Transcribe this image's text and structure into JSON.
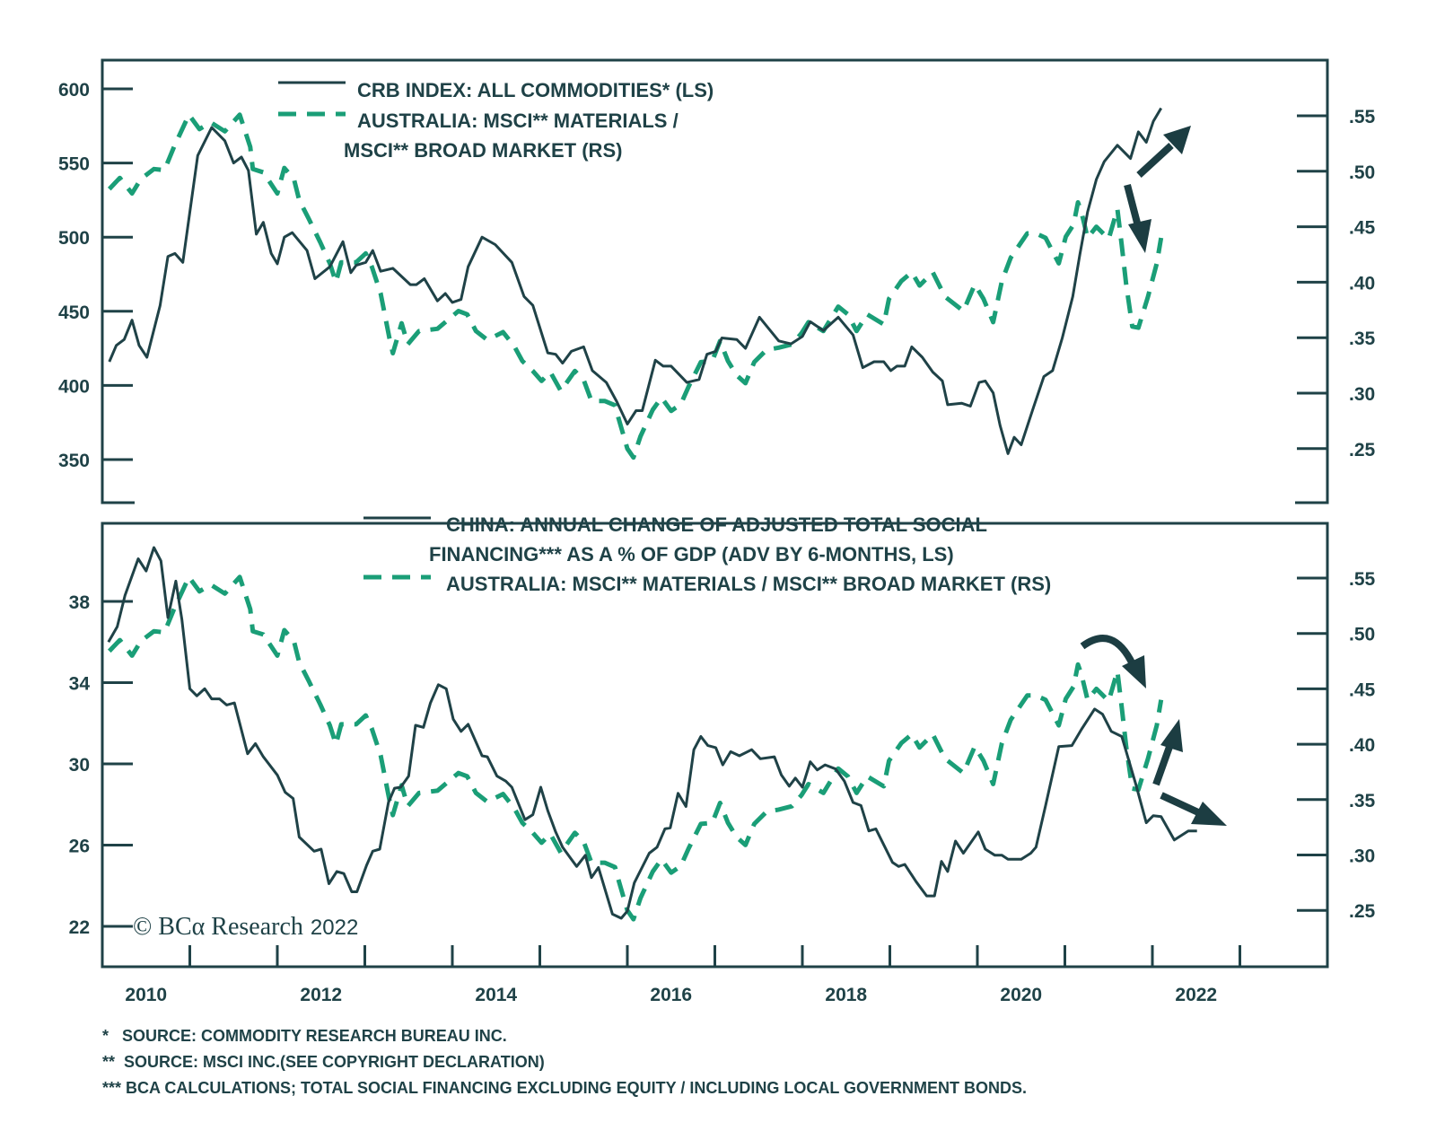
{
  "colors": {
    "dark": "#1f4247",
    "green": "#1a9e77",
    "arrow": "#1c3d42"
  },
  "chart_data": [
    {
      "type": "line",
      "panel": "top",
      "xlim": [
        2010,
        2024
      ],
      "x_tick_labels": [
        "2010",
        "2012",
        "2014",
        "2016",
        "2018",
        "2020",
        "2022"
      ],
      "y_left": {
        "ticks": [
          350,
          400,
          450,
          500,
          550,
          600
        ],
        "tick_labels": [
          "350",
          "400",
          "450",
          "500",
          "550",
          "600"
        ]
      },
      "y_right": {
        "ticks": [
          0.25,
          0.3,
          0.35,
          0.4,
          0.45,
          0.5,
          0.55
        ],
        "tick_labels": [
          ".25",
          ".30",
          ".35",
          ".40",
          ".45",
          ".50",
          ".55"
        ]
      },
      "legend": [
        {
          "label": "CRB INDEX: ALL COMMODITIES* (LS)",
          "style": "solid"
        },
        {
          "label_lines": [
            "AUSTRALIA: MSCI** MATERIALS /",
            "MSCI** BROAD MARKET (RS)"
          ],
          "style": "dashed"
        }
      ],
      "legend_position": "top-left",
      "series": [
        {
          "name": "CRB INDEX: ALL COMMODITIES* (LS)",
          "axis": "left",
          "style": "solid",
          "x": [
            2010.08,
            2010.16,
            2010.25,
            2010.34,
            2010.42,
            2010.51,
            2010.66,
            2010.75,
            2010.83,
            2010.92,
            2011.09,
            2011.25,
            2011.4,
            2011.5,
            2011.59,
            2011.67,
            2011.76,
            2011.84,
            2011.93,
            2012.0,
            2012.08,
            2012.17,
            2012.34,
            2012.43,
            2012.6,
            2012.75,
            2012.84,
            2012.9,
            2013.01,
            2013.09,
            2013.18,
            2013.32,
            2013.52,
            2013.59,
            2013.68,
            2013.83,
            2013.92,
            2014.0,
            2014.1,
            2014.18,
            2014.34,
            2014.49,
            2014.68,
            2014.82,
            2014.92,
            2015.09,
            2015.18,
            2015.26,
            2015.36,
            2015.5,
            2015.6,
            2015.76,
            2015.88,
            2016.0,
            2016.1,
            2016.17,
            2016.32,
            2016.41,
            2016.5,
            2016.68,
            2016.82,
            2016.91,
            2017.01,
            2017.08,
            2017.25,
            2017.35,
            2017.51,
            2017.73,
            2017.87,
            2018.0,
            2018.09,
            2018.24,
            2018.41,
            2018.58,
            2018.69,
            2018.82,
            2018.93,
            2019.01,
            2019.08,
            2019.17,
            2019.25,
            2019.37,
            2019.49,
            2019.6,
            2019.66,
            2019.82,
            2019.92,
            2020.02,
            2020.09,
            2020.18,
            2020.26,
            2020.35,
            2020.42,
            2020.5,
            2020.64,
            2020.76,
            2020.86,
            2020.97,
            2021.09,
            2021.17,
            2021.26,
            2021.36,
            2021.45,
            2021.6,
            2021.75,
            2021.84,
            2021.93,
            2022.01,
            2022.1
          ],
          "values": [
            416,
            427,
            431,
            444,
            427,
            419,
            454,
            487,
            489,
            483,
            555,
            574,
            565,
            550,
            554,
            545,
            502,
            510,
            489,
            482,
            500,
            503,
            491,
            472,
            480,
            497,
            476,
            481,
            483,
            491,
            477,
            479,
            468,
            468,
            472,
            457,
            462,
            456,
            458,
            480,
            500,
            495,
            483,
            460,
            454,
            422,
            421,
            415,
            423,
            426,
            410,
            402,
            389,
            374,
            383,
            383,
            417,
            413,
            413,
            402,
            404,
            421,
            423,
            432,
            431,
            425,
            446,
            430,
            428,
            433,
            443,
            437,
            446,
            434,
            412,
            416,
            416,
            410,
            413,
            413,
            426,
            419,
            409,
            403,
            387,
            388,
            386,
            402,
            403,
            395,
            373,
            354,
            365,
            360,
            385,
            406,
            410,
            432,
            460,
            488,
            517,
            539,
            551,
            562,
            553,
            571,
            564,
            578,
            587
          ]
        },
        {
          "name": "AUSTRALIA: MSCI** MATERIALS / MSCI** BROAD MARKET (RS)",
          "axis": "right",
          "style": "dashed",
          "x": [
            2010.08,
            2010.2,
            2010.34,
            2010.44,
            2010.59,
            2010.71,
            2010.82,
            2010.99,
            2011.11,
            2011.24,
            2011.4,
            2011.57,
            2011.69,
            2011.72,
            2011.84,
            2012.0,
            2012.08,
            2012.19,
            2012.25,
            2012.36,
            2012.49,
            2012.6,
            2012.67,
            2012.73,
            2012.9,
            2013.01,
            2013.08,
            2013.18,
            2013.28,
            2013.32,
            2013.42,
            2013.49,
            2013.62,
            2013.83,
            2014.07,
            2014.17,
            2014.27,
            2014.4,
            2014.58,
            2014.71,
            2014.8,
            2014.92,
            2015.02,
            2015.12,
            2015.24,
            2015.4,
            2015.5,
            2015.59,
            2015.74,
            2015.86,
            2015.9,
            2016.0,
            2016.07,
            2016.15,
            2016.29,
            2016.39,
            2016.5,
            2016.61,
            2016.7,
            2016.84,
            2016.97,
            2017.06,
            2017.15,
            2017.25,
            2017.35,
            2017.45,
            2017.59,
            2017.73,
            2017.88,
            2017.99,
            2018.07,
            2018.24,
            2018.41,
            2018.52,
            2018.62,
            2018.74,
            2018.93,
            2018.99,
            2019.13,
            2019.25,
            2019.34,
            2019.49,
            2019.63,
            2019.84,
            2019.97,
            2020.07,
            2020.18,
            2020.28,
            2020.38,
            2020.57,
            2020.67,
            2020.78,
            2020.93,
            2021.01,
            2021.1,
            2021.15,
            2021.19,
            2021.26,
            2021.36,
            2021.5,
            2021.6,
            2021.65,
            2021.7,
            2021.77,
            2021.84,
            2021.95,
            2022.05,
            2022.1
          ],
          "values": [
            0.484,
            0.494,
            0.48,
            0.493,
            0.502,
            0.501,
            0.522,
            0.551,
            0.538,
            0.544,
            0.536,
            0.551,
            0.522,
            0.502,
            0.499,
            0.48,
            0.503,
            0.493,
            0.474,
            0.457,
            0.436,
            0.417,
            0.4,
            0.418,
            0.418,
            0.426,
            0.414,
            0.39,
            0.35,
            0.336,
            0.363,
            0.344,
            0.356,
            0.358,
            0.374,
            0.371,
            0.356,
            0.348,
            0.355,
            0.342,
            0.329,
            0.32,
            0.311,
            0.319,
            0.302,
            0.32,
            0.312,
            0.293,
            0.293,
            0.289,
            0.277,
            0.25,
            0.242,
            0.261,
            0.285,
            0.296,
            0.284,
            0.29,
            0.306,
            0.328,
            0.329,
            0.347,
            0.329,
            0.316,
            0.309,
            0.328,
            0.339,
            0.341,
            0.344,
            0.354,
            0.364,
            0.356,
            0.378,
            0.371,
            0.356,
            0.371,
            0.362,
            0.385,
            0.401,
            0.409,
            0.397,
            0.409,
            0.387,
            0.374,
            0.398,
            0.385,
            0.364,
            0.401,
            0.422,
            0.444,
            0.444,
            0.44,
            0.417,
            0.441,
            0.452,
            0.472,
            0.463,
            0.44,
            0.45,
            0.439,
            0.466,
            0.433,
            0.398,
            0.36,
            0.359,
            0.387,
            0.417,
            0.44
          ]
        }
      ],
      "annotations": [
        "arrow up-right (CRB continues higher)",
        "arrow down (Australia materials ratio)"
      ]
    },
    {
      "type": "line",
      "panel": "bottom",
      "xlim": [
        2010,
        2024
      ],
      "x_tick_labels": [
        "2010",
        "2012",
        "2014",
        "2016",
        "2018",
        "2020",
        "2022"
      ],
      "y_left": {
        "ticks": [
          22,
          26,
          30,
          34,
          38
        ],
        "tick_labels": [
          "22",
          "26",
          "30",
          "34",
          "38"
        ]
      },
      "y_right": {
        "ticks": [
          0.25,
          0.3,
          0.35,
          0.4,
          0.45,
          0.5,
          0.55
        ],
        "tick_labels": [
          ".25",
          ".30",
          ".35",
          ".40",
          ".45",
          ".50",
          ".55"
        ]
      },
      "legend": [
        {
          "label_lines": [
            "CHINA: ANNUAL CHANGE OF ADJUSTED TOTAL SOCIAL",
            "FINANCING*** AS A % OF GDP (ADV BY 6-MONTHS, LS)"
          ],
          "style": "solid"
        },
        {
          "label": "AUSTRALIA: MSCI** MATERIALS / MSCI** BROAD MARKET (RS)",
          "style": "dashed"
        }
      ],
      "legend_position": "top-center",
      "series": [
        {
          "name": "CHINA: ANNUAL CHANGE OF ADJUSTED TOTAL SOCIAL FINANCING*** AS A % OF GDP (ADV BY 6-MONTHS, LS)",
          "axis": "left",
          "style": "solid",
          "x": [
            2010.07,
            2010.17,
            2010.26,
            2010.41,
            2010.5,
            2010.59,
            2010.67,
            2010.75,
            2010.84,
            2010.91,
            2011.0,
            2011.08,
            2011.17,
            2011.25,
            2011.34,
            2011.42,
            2011.51,
            2011.66,
            2011.75,
            2011.84,
            2012.0,
            2012.09,
            2012.18,
            2012.25,
            2012.42,
            2012.5,
            2012.59,
            2012.68,
            2012.76,
            2012.85,
            2012.91,
            2013.02,
            2013.09,
            2013.17,
            2013.27,
            2013.34,
            2013.41,
            2013.5,
            2013.58,
            2013.67,
            2013.75,
            2013.84,
            2013.93,
            2014.01,
            2014.1,
            2014.18,
            2014.34,
            2014.4,
            2014.51,
            2014.61,
            2014.68,
            2014.83,
            2014.92,
            2015.01,
            2015.09,
            2015.18,
            2015.26,
            2015.42,
            2015.52,
            2015.59,
            2015.67,
            2015.83,
            2015.93,
            2016.0,
            2016.08,
            2016.25,
            2016.34,
            2016.43,
            2016.49,
            2016.58,
            2016.67,
            2016.76,
            2016.84,
            2016.92,
            2017.01,
            2017.09,
            2017.18,
            2017.28,
            2017.42,
            2017.52,
            2017.68,
            2017.76,
            2017.85,
            2017.92,
            2018.0,
            2018.09,
            2018.17,
            2018.26,
            2018.38,
            2018.48,
            2018.58,
            2018.67,
            2018.76,
            2018.84,
            2019.03,
            2019.1,
            2019.17,
            2019.3,
            2019.42,
            2019.51,
            2019.59,
            2019.66,
            2019.75,
            2019.84,
            2020.01,
            2020.09,
            2020.2,
            2020.28,
            2020.35,
            2020.5,
            2020.61,
            2020.67,
            2020.78,
            2020.93,
            2021.08,
            2021.19,
            2021.34,
            2021.43,
            2021.53,
            2021.65,
            2021.81,
            2021.93,
            2022.01,
            2022.1,
            2022.25,
            2022.41,
            2022.51
          ],
          "values": [
            36.0,
            36.75,
            38.3,
            40.1,
            39.5,
            40.65,
            40.0,
            37.2,
            39.0,
            37.1,
            33.7,
            33.35,
            33.7,
            33.2,
            33.2,
            32.9,
            33.0,
            30.5,
            31.0,
            30.35,
            29.45,
            28.6,
            28.3,
            26.4,
            25.7,
            25.8,
            24.1,
            24.7,
            24.6,
            23.7,
            23.7,
            25.0,
            25.7,
            25.8,
            28.1,
            28.8,
            28.85,
            29.4,
            31.9,
            31.8,
            33.0,
            33.9,
            33.7,
            32.2,
            31.6,
            31.95,
            30.4,
            30.35,
            29.4,
            29.15,
            28.85,
            27.25,
            27.5,
            28.85,
            27.7,
            26.65,
            25.9,
            24.95,
            25.5,
            24.4,
            24.9,
            22.6,
            22.4,
            22.75,
            24.15,
            25.6,
            25.9,
            26.8,
            26.85,
            28.55,
            27.9,
            30.7,
            31.35,
            30.9,
            30.8,
            29.95,
            30.6,
            30.4,
            30.7,
            30.25,
            30.35,
            29.45,
            28.9,
            29.3,
            28.85,
            30.1,
            29.7,
            29.95,
            29.75,
            29.15,
            28.1,
            27.95,
            26.7,
            26.8,
            25.15,
            24.95,
            25.05,
            24.2,
            23.5,
            23.5,
            25.2,
            24.7,
            26.2,
            25.6,
            26.65,
            25.8,
            25.5,
            25.5,
            25.3,
            25.3,
            25.6,
            25.9,
            27.95,
            30.85,
            30.9,
            31.7,
            32.7,
            32.45,
            31.6,
            31.35,
            29.0,
            27.1,
            27.45,
            27.4,
            26.25,
            26.7,
            26.7
          ]
        },
        {
          "name": "AUSTRALIA: MSCI** MATERIALS / MSCI** BROAD MARKET (RS)",
          "axis": "right",
          "style": "dashed",
          "same_as": "top panel series 2"
        }
      ],
      "annotations": [
        "curved arrow down (Australia ratio rolling over)",
        "arrow up",
        "arrow down-right (TSF impulse)"
      ]
    }
  ],
  "copyright": {
    "prefix": "© BCα Research",
    "year": "2022"
  },
  "footnotes": [
    "*   SOURCE: COMMODITY RESEARCH BUREAU INC.",
    "**  SOURCE: MSCI INC.(SEE COPYRIGHT DECLARATION)",
    "*** BCA CALCULATIONS; TOTAL SOCIAL FINANCING EXCLUDING EQUITY / INCLUDING LOCAL GOVERNMENT BONDS."
  ]
}
